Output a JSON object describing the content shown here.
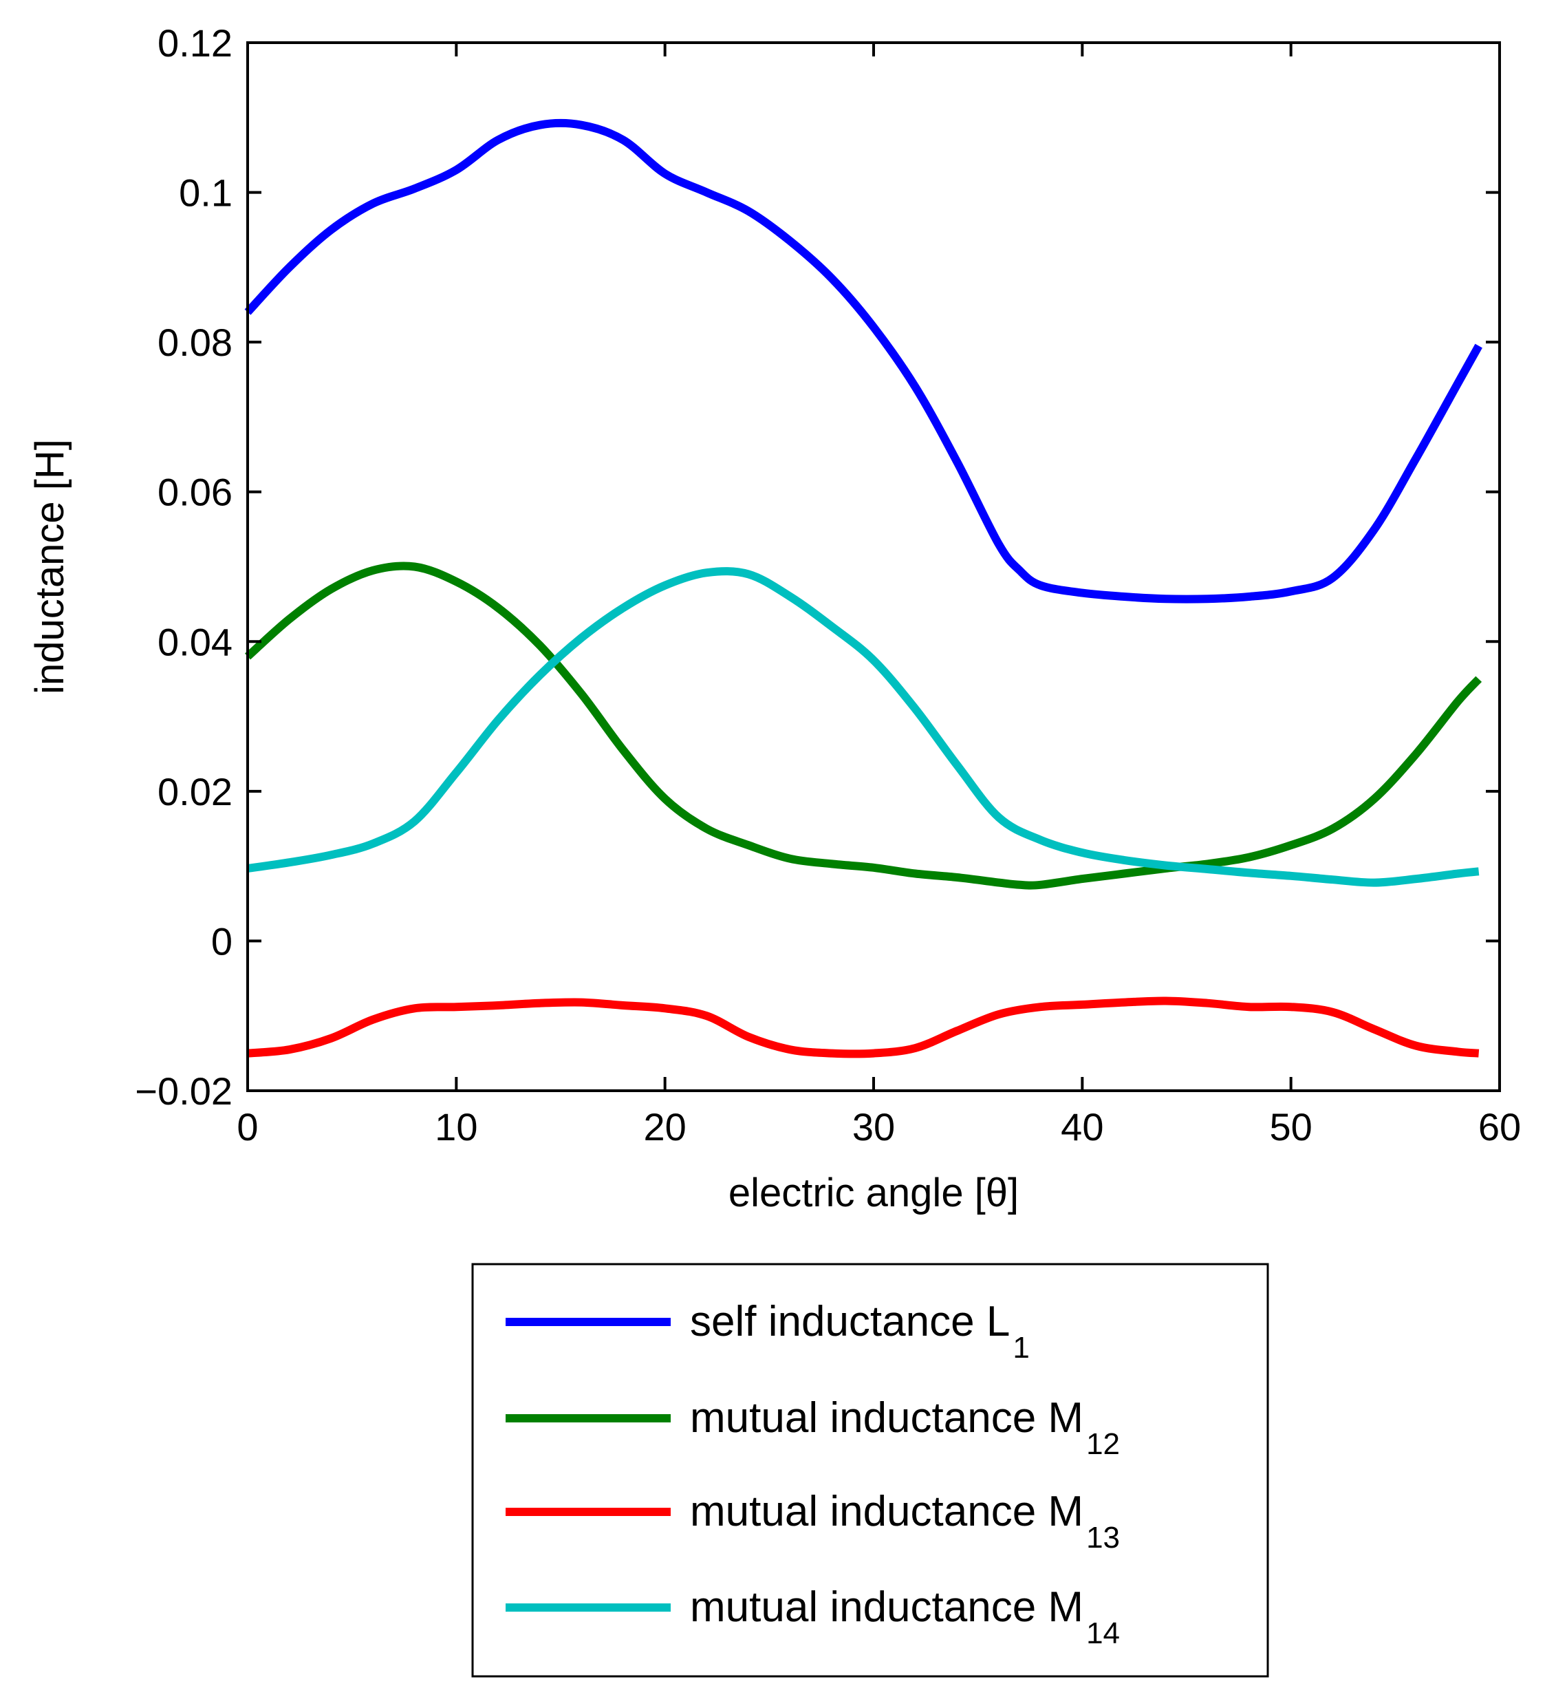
{
  "chart_data": {
    "type": "line",
    "title": "",
    "xlabel": "electric angle [θ]",
    "ylabel": "inductance [H]",
    "xlim": [
      0,
      60
    ],
    "ylim": [
      -0.02,
      0.12
    ],
    "xticks": [
      0,
      10,
      20,
      30,
      40,
      50,
      60
    ],
    "xtick_labels": [
      "0",
      "10",
      "20",
      "30",
      "40",
      "50",
      "60"
    ],
    "yticks": [
      -0.02,
      0,
      0.02,
      0.04,
      0.06,
      0.08,
      0.1,
      0.12
    ],
    "ytick_labels": [
      "−0.02",
      "0",
      "0.02",
      "0.04",
      "0.06",
      "0.08",
      "0.1",
      "0.12"
    ],
    "grid": false,
    "legend_position": "below",
    "series": [
      {
        "name": "self inductance L1",
        "label_main": "self inductance L",
        "label_sub": "1",
        "color": "#0000ff",
        "x": [
          0,
          2,
          4,
          6,
          8,
          10,
          12,
          14,
          16,
          18,
          20,
          22,
          24,
          26,
          28,
          30,
          32,
          34,
          36,
          37,
          38,
          40,
          42,
          44,
          46,
          48,
          50,
          52,
          54,
          56,
          58,
          59
        ],
        "y": [
          0.084,
          0.09,
          0.095,
          0.0985,
          0.1005,
          0.103,
          0.107,
          0.109,
          0.109,
          0.107,
          0.1025,
          0.1,
          0.0975,
          0.0935,
          0.0885,
          0.082,
          0.074,
          0.064,
          0.053,
          0.0495,
          0.0475,
          0.0465,
          0.046,
          0.0457,
          0.0457,
          0.046,
          0.0467,
          0.0485,
          0.055,
          0.0645,
          0.0745,
          0.0795
        ]
      },
      {
        "name": "mutual inductance M12",
        "label_main": "mutual inductance M",
        "label_sub": "12",
        "color": "#008000",
        "x": [
          0,
          2,
          4,
          6,
          8,
          10,
          12,
          14,
          16,
          18,
          20,
          22,
          24,
          26,
          28,
          30,
          32,
          34,
          36,
          37,
          38,
          40,
          42,
          44,
          46,
          48,
          50,
          52,
          54,
          56,
          58,
          59
        ],
        "y": [
          0.038,
          0.043,
          0.047,
          0.0495,
          0.05,
          0.048,
          0.0445,
          0.0395,
          0.033,
          0.0255,
          0.019,
          0.015,
          0.0128,
          0.011,
          0.0103,
          0.0098,
          0.009,
          0.0085,
          0.0078,
          0.0075,
          0.0075,
          0.0083,
          0.009,
          0.0097,
          0.0103,
          0.0112,
          0.0128,
          0.015,
          0.019,
          0.025,
          0.032,
          0.035
        ]
      },
      {
        "name": "mutual inductance M13",
        "label_main": "mutual inductance M",
        "label_sub": "13",
        "color": "#ff0000",
        "x": [
          0,
          2,
          4,
          6,
          8,
          10,
          12,
          14,
          16,
          18,
          20,
          22,
          24,
          26,
          28,
          30,
          32,
          34,
          36,
          38,
          40,
          42,
          44,
          46,
          48,
          50,
          52,
          54,
          56,
          58,
          59
        ],
        "y": [
          -0.015,
          -0.0145,
          -0.013,
          -0.0105,
          -0.009,
          -0.0088,
          -0.0086,
          -0.0083,
          -0.0082,
          -0.0086,
          -0.009,
          -0.01,
          -0.0128,
          -0.0145,
          -0.015,
          -0.015,
          -0.0143,
          -0.012,
          -0.0098,
          -0.0088,
          -0.0085,
          -0.0082,
          -0.008,
          -0.0083,
          -0.0088,
          -0.0088,
          -0.0095,
          -0.0118,
          -0.014,
          -0.0148,
          -0.015
        ]
      },
      {
        "name": "mutual inductance M14",
        "label_main": "mutual inductance M",
        "label_sub": "14",
        "color": "#00bfbf",
        "x": [
          0,
          2,
          4,
          6,
          8,
          10,
          12,
          14,
          16,
          18,
          20,
          22,
          24,
          26,
          28,
          30,
          32,
          34,
          36,
          38,
          40,
          42,
          44,
          46,
          48,
          50,
          52,
          54,
          56,
          58,
          59
        ],
        "y": [
          0.0097,
          0.0105,
          0.0115,
          0.013,
          0.016,
          0.0225,
          0.0295,
          0.0355,
          0.0405,
          0.0445,
          0.0475,
          0.0492,
          0.049,
          0.046,
          0.042,
          0.0375,
          0.031,
          0.0235,
          0.0165,
          0.0135,
          0.0118,
          0.0108,
          0.0101,
          0.0096,
          0.0091,
          0.0087,
          0.0082,
          0.0078,
          0.0083,
          0.009,
          0.0093
        ]
      }
    ]
  }
}
